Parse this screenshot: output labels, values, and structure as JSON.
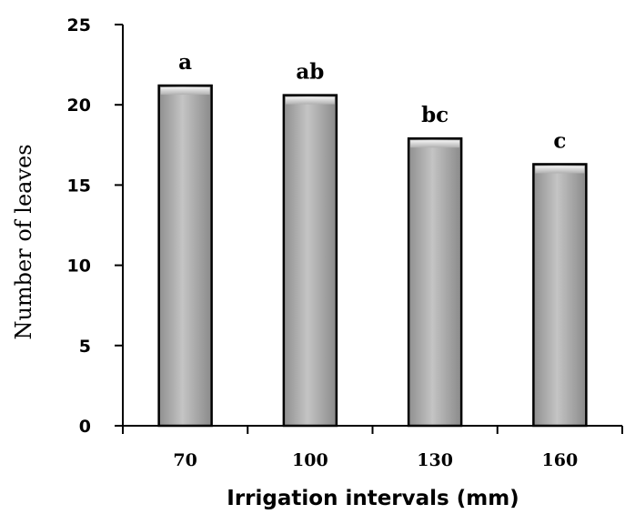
{
  "chart_data": {
    "type": "bar",
    "categories": [
      "70",
      "100",
      "130",
      "160"
    ],
    "values": [
      21.2,
      20.6,
      17.9,
      16.3
    ],
    "labels": [
      "a",
      "ab",
      "bc",
      "c"
    ],
    "xlabel": "Irrigation intervals (mm)",
    "ylabel": "Number of leaves",
    "ylim": [
      0,
      25
    ],
    "yticks": [
      "0",
      "5",
      "10",
      "15",
      "20",
      "25"
    ],
    "grid": false,
    "legend": "none",
    "bar_color": "#a8a8a8"
  }
}
